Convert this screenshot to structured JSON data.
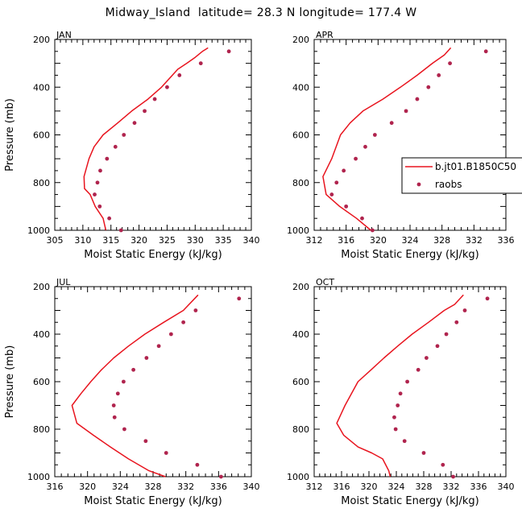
{
  "title": "Midway_Island  latitude= 28.3 N longitude= 177.4 W",
  "legend": {
    "entries": [
      {
        "label": "b.jt01.B1850C50",
        "style": "line",
        "color": "#e8141e"
      },
      {
        "label": "raobs",
        "style": "marker",
        "color": "#b0244e"
      }
    ]
  },
  "colors": {
    "model": "#e8141e",
    "raobs": "#b0244e"
  },
  "chart_data": [
    {
      "type": "line",
      "panel": "JAN",
      "xlabel": "Moist Static Energy (kJ/kg)",
      "ylabel": "Pressure (mb)",
      "xlim": [
        305,
        340
      ],
      "ylim": [
        1000,
        200
      ],
      "y_axis": "inverted",
      "xticks": [
        305,
        310,
        315,
        320,
        325,
        330,
        335,
        340
      ],
      "yticks": [
        200,
        400,
        600,
        800,
        1000
      ],
      "series": [
        {
          "name": "b.jt01.B1850C50",
          "style": "line",
          "points": [
            [
              332.3,
              235
            ],
            [
              331.3,
              250
            ],
            [
              330,
              275
            ],
            [
              328.5,
              300
            ],
            [
              326.9,
              325
            ],
            [
              324,
              400
            ],
            [
              321.6,
              450
            ],
            [
              318.7,
              500
            ],
            [
              316.2,
              550
            ],
            [
              313.6,
              600
            ],
            [
              312,
              650
            ],
            [
              311.1,
              700
            ],
            [
              310.2,
              775
            ],
            [
              310.3,
              825
            ],
            [
              311.3,
              850
            ],
            [
              312.2,
              900
            ],
            [
              313.6,
              950
            ],
            [
              314.1,
              1000
            ]
          ]
        },
        {
          "name": "raobs",
          "style": "marker",
          "points": [
            [
              336,
              250
            ],
            [
              331,
              300
            ],
            [
              327.2,
              350
            ],
            [
              325,
              400
            ],
            [
              322.8,
              450
            ],
            [
              321,
              500
            ],
            [
              319.2,
              550
            ],
            [
              317.3,
              600
            ],
            [
              315.8,
              650
            ],
            [
              314.3,
              700
            ],
            [
              313.1,
              750
            ],
            [
              312.6,
              800
            ],
            [
              312.1,
              850
            ],
            [
              313,
              900
            ],
            [
              314.7,
              950
            ],
            [
              316.8,
              1000
            ]
          ]
        }
      ]
    },
    {
      "type": "line",
      "panel": "APR",
      "xlabel": "Moist Static Energy (kJ/kg)",
      "ylabel": "",
      "xlim": [
        312,
        336
      ],
      "ylim": [
        1000,
        200
      ],
      "y_axis": "inverted",
      "xticks": [
        312,
        316,
        320,
        324,
        328,
        332,
        336
      ],
      "yticks": [
        200,
        400,
        600,
        800,
        1000
      ],
      "series": [
        {
          "name": "b.jt01.B1850C50",
          "style": "line",
          "points": [
            [
              329.1,
              235
            ],
            [
              328.3,
              265
            ],
            [
              326.8,
              300
            ],
            [
              324.9,
              350
            ],
            [
              322.8,
              400
            ],
            [
              320.6,
              450
            ],
            [
              318.1,
              500
            ],
            [
              316.5,
              550
            ],
            [
              315.3,
              600
            ],
            [
              314.2,
              700
            ],
            [
              313.1,
              775
            ],
            [
              313.5,
              850
            ],
            [
              315.2,
              900
            ],
            [
              317.3,
              950
            ],
            [
              319.1,
              1000
            ]
          ]
        },
        {
          "name": "raobs",
          "style": "marker",
          "points": [
            [
              333.5,
              250
            ],
            [
              329,
              300
            ],
            [
              327.6,
              350
            ],
            [
              326.3,
              400
            ],
            [
              324.9,
              450
            ],
            [
              323.5,
              500
            ],
            [
              321.7,
              550
            ],
            [
              319.6,
              600
            ],
            [
              318.4,
              650
            ],
            [
              317.2,
              700
            ],
            [
              315.7,
              750
            ],
            [
              314.8,
              800
            ],
            [
              314.2,
              850
            ],
            [
              316,
              900
            ],
            [
              318,
              950
            ],
            [
              319.3,
              1000
            ]
          ]
        }
      ]
    },
    {
      "type": "line",
      "panel": "JUL",
      "xlabel": "Moist Static Energy (kJ/kg)",
      "ylabel": "Pressure (mb)",
      "xlim": [
        316,
        340
      ],
      "ylim": [
        1000,
        200
      ],
      "y_axis": "inverted",
      "xticks": [
        316,
        320,
        324,
        328,
        332,
        336,
        340
      ],
      "yticks": [
        200,
        400,
        600,
        800,
        1000
      ],
      "series": [
        {
          "name": "b.jt01.B1850C50",
          "style": "line",
          "points": [
            [
              333.5,
              235
            ],
            [
              331.7,
              300
            ],
            [
              329.3,
              350
            ],
            [
              327,
              400
            ],
            [
              325,
              450
            ],
            [
              323.2,
              500
            ],
            [
              321.7,
              550
            ],
            [
              320.4,
              600
            ],
            [
              319.2,
              650
            ],
            [
              318.1,
              700
            ],
            [
              318.7,
              775
            ],
            [
              320.7,
              825
            ],
            [
              322.8,
              875
            ],
            [
              325,
              925
            ],
            [
              327.5,
              975
            ],
            [
              329.5,
              1000
            ]
          ]
        },
        {
          "name": "raobs",
          "style": "marker",
          "points": [
            [
              338.5,
              250
            ],
            [
              333.2,
              300
            ],
            [
              331.7,
              350
            ],
            [
              330.2,
              400
            ],
            [
              328.7,
              450
            ],
            [
              327.2,
              500
            ],
            [
              325.6,
              550
            ],
            [
              324.4,
              600
            ],
            [
              323.7,
              650
            ],
            [
              323.2,
              700
            ],
            [
              323.3,
              750
            ],
            [
              324.5,
              800
            ],
            [
              327.1,
              850
            ],
            [
              329.6,
              900
            ],
            [
              333.4,
              950
            ],
            [
              336.3,
              1000
            ]
          ]
        }
      ]
    },
    {
      "type": "line",
      "panel": "OCT",
      "xlabel": "Moist Static Energy (kJ/kg)",
      "ylabel": "",
      "xlim": [
        312,
        340
      ],
      "ylim": [
        1000,
        200
      ],
      "y_axis": "inverted",
      "xticks": [
        312,
        316,
        320,
        324,
        328,
        332,
        336,
        340
      ],
      "yticks": [
        200,
        400,
        600,
        800,
        1000
      ],
      "series": [
        {
          "name": "b.jt01.B1850C50",
          "style": "line",
          "points": [
            [
              333.8,
              235
            ],
            [
              332.5,
              275
            ],
            [
              331,
              300
            ],
            [
              328.7,
              350
            ],
            [
              326.3,
              400
            ],
            [
              324.2,
              450
            ],
            [
              322.2,
              500
            ],
            [
              320.3,
              550
            ],
            [
              318.4,
              600
            ],
            [
              316.5,
              700
            ],
            [
              315.3,
              775
            ],
            [
              316.3,
              825
            ],
            [
              318.4,
              875
            ],
            [
              320.4,
              900
            ],
            [
              322,
              925
            ],
            [
              322.9,
              975
            ],
            [
              323.1,
              1000
            ]
          ]
        },
        {
          "name": "raobs",
          "style": "marker",
          "points": [
            [
              337.3,
              250
            ],
            [
              334,
              300
            ],
            [
              332.8,
              350
            ],
            [
              331.3,
              400
            ],
            [
              330,
              450
            ],
            [
              328.4,
              500
            ],
            [
              327.2,
              550
            ],
            [
              325.6,
              600
            ],
            [
              324.6,
              650
            ],
            [
              324.2,
              700
            ],
            [
              323.7,
              750
            ],
            [
              323.9,
              800
            ],
            [
              325.2,
              850
            ],
            [
              328,
              900
            ],
            [
              330.8,
              950
            ],
            [
              332.3,
              1000
            ]
          ]
        }
      ]
    }
  ]
}
